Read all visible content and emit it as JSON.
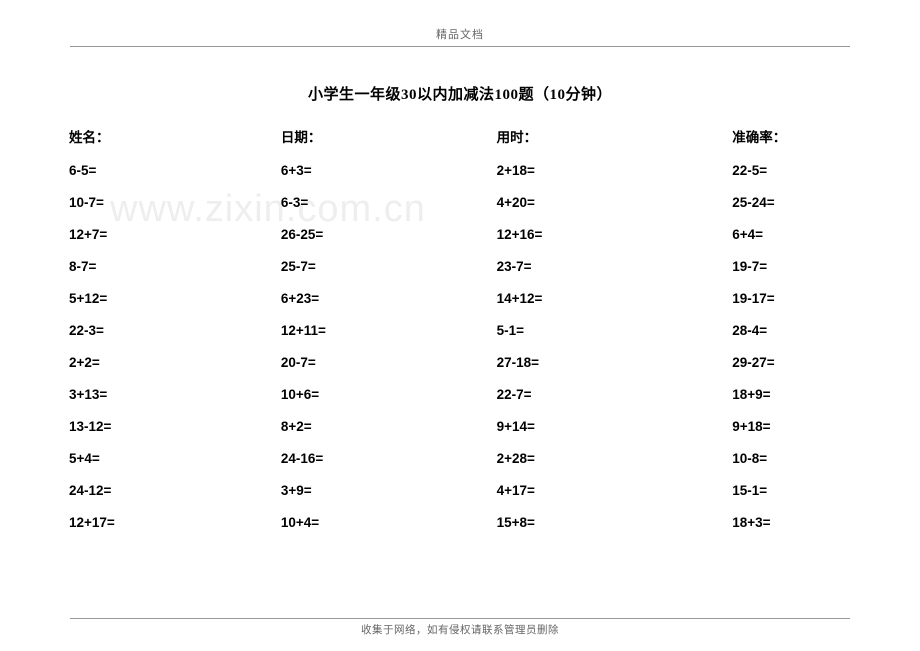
{
  "header": "精品文档",
  "title": "小学生一年级30以内加减法100题（10分钟）",
  "meta": {
    "name": "姓名：",
    "date": "日期：",
    "time": "用时：",
    "accuracy": "准确率："
  },
  "watermark": "www.zixin.com.cn",
  "footer": "收集于网络，如有侵权请联系管理员删除",
  "rows": [
    [
      "6-5=",
      "6+3=",
      "2+18=",
      "22-5="
    ],
    [
      "10-7=",
      "6-3=",
      "4+20=",
      "25-24="
    ],
    [
      "12+7=",
      "26-25=",
      "12+16=",
      "6+4="
    ],
    [
      "8-7=",
      "25-7=",
      "23-7=",
      "19-7="
    ],
    [
      "5+12=",
      "6+23=",
      "14+12=",
      "19-17="
    ],
    [
      "22-3=",
      "12+11=",
      "5-1=",
      "28-4="
    ],
    [
      "2+2=",
      "20-7=",
      "27-18=",
      "29-27="
    ],
    [
      "3+13=",
      "10+6=",
      "22-7=",
      "18+9="
    ],
    [
      "13-12=",
      "8+2=",
      "9+14=",
      "9+18="
    ],
    [
      "5+4=",
      "24-16=",
      "2+28=",
      "10-8="
    ],
    [
      "24-12=",
      "3+9=",
      "4+17=",
      "15-1="
    ],
    [
      "12+17=",
      "10+4=",
      "15+8=",
      "18+3="
    ]
  ]
}
